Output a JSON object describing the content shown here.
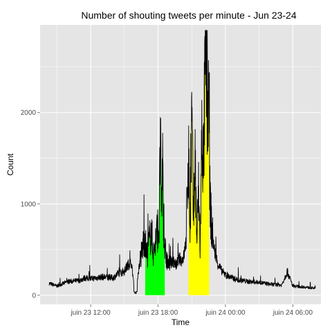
{
  "chart_data": {
    "type": "line",
    "title": "Number of shouting tweets per minute - Jun 23-24",
    "xlabel": "Time",
    "ylabel": "Count",
    "x_axis": {
      "ticks": [
        {
          "label": "juin 23 12:00",
          "hours": 12
        },
        {
          "label": "juin 23 18:00",
          "hours": 18
        },
        {
          "label": "juin 24 00:00",
          "hours": 24
        },
        {
          "label": "juin 24 06:00",
          "hours": 30
        }
      ],
      "xlim_hours": [
        7.5,
        32.5
      ]
    },
    "y_axis": {
      "ticks": [
        0,
        1000,
        2000
      ],
      "ylim": [
        -100,
        2960
      ]
    },
    "grid": true,
    "background": "#e5e5e5",
    "grid_color": "#ffffff",
    "line_color": "#000000",
    "highlights": [
      {
        "name": "green",
        "color": "#00ff00",
        "start_hours": 16.85,
        "end_hours": 18.6
      },
      {
        "name": "yellow",
        "color": "#ffff00",
        "start_hours": 20.7,
        "end_hours": 22.55
      }
    ],
    "series": [
      {
        "x_hours": [
          8.3,
          9,
          10,
          11,
          11.5,
          12,
          13,
          14,
          14.5,
          15,
          15.3,
          15.6,
          15.75,
          15.9,
          16.05,
          16.2,
          16.4,
          16.6,
          16.8,
          17,
          17.2,
          17.4,
          17.6,
          17.8,
          18,
          18.1,
          18.2,
          18.3,
          18.4,
          18.5,
          18.6,
          18.8,
          19,
          19.3,
          19.6,
          19.9,
          20.1,
          20.3,
          20.5,
          20.7,
          20.85,
          21,
          21.15,
          21.3,
          21.45,
          21.6,
          21.75,
          21.9,
          22.05,
          22.2,
          22.3,
          22.4,
          22.5,
          22.6,
          22.8,
          23,
          23.3,
          23.6,
          24,
          25,
          26,
          27,
          28,
          29,
          29.5,
          30,
          31,
          32
        ],
        "y": [
          130,
          100,
          150,
          160,
          190,
          180,
          200,
          190,
          240,
          260,
          330,
          360,
          230,
          30,
          20,
          220,
          380,
          500,
          650,
          430,
          580,
          700,
          450,
          620,
          750,
          700,
          1800,
          850,
          1500,
          700,
          500,
          370,
          320,
          380,
          330,
          400,
          380,
          430,
          600,
          1650,
          650,
          1950,
          800,
          1500,
          600,
          1150,
          500,
          1800,
          1400,
          2600,
          2800,
          1800,
          2300,
          1100,
          700,
          500,
          350,
          280,
          220,
          170,
          150,
          140,
          120,
          110,
          260,
          100,
          90,
          75
        ]
      }
    ]
  }
}
